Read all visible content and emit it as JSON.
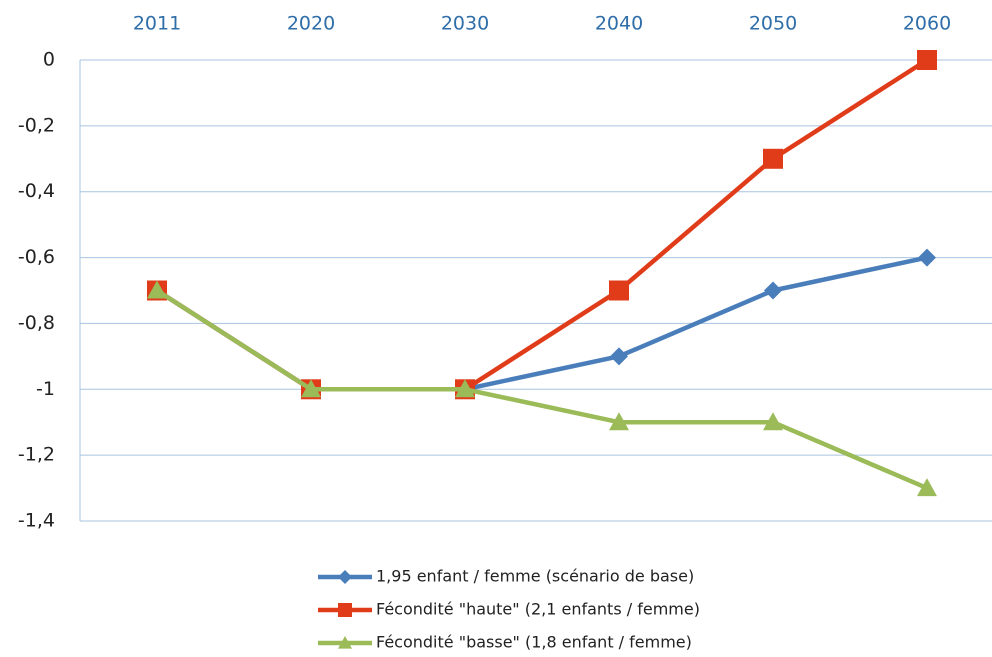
{
  "chart_data": {
    "type": "line",
    "categories": [
      "2011",
      "2020",
      "2030",
      "2040",
      "2050",
      "2060"
    ],
    "series": [
      {
        "name": "1,95 enfant / femme (scénario de base)",
        "color": "#4a7ebb",
        "marker": "diamond",
        "values": [
          -0.7,
          -1,
          -1,
          -0.9,
          -0.7,
          -0.6
        ]
      },
      {
        "name": "Fécondité \"haute\" (2,1 enfants / femme)",
        "color": "#e03c1a",
        "marker": "square",
        "values": [
          -0.7,
          -1,
          -1,
          -0.7,
          -0.3,
          0
        ]
      },
      {
        "name": "Fécondité \"basse\" (1,8 enfant / femme)",
        "color": "#9bbb59",
        "marker": "triangle",
        "values": [
          -0.7,
          -1,
          -1,
          -1.1,
          -1.1,
          -1.3
        ]
      }
    ],
    "ylim": [
      -1.4,
      0
    ],
    "yticks": [
      0,
      {
        "value": -0.2,
        "label": "-0,2"
      },
      {
        "value": -0.4,
        "label": "-0,4"
      },
      {
        "value": -0.6,
        "label": "-0,6"
      },
      {
        "value": -0.8,
        "label": "-0,8"
      },
      -1,
      {
        "value": -1.2,
        "label": "-1,2"
      },
      {
        "value": -1.4,
        "label": "-1,4"
      }
    ],
    "grid": true,
    "legend": "bottom"
  }
}
